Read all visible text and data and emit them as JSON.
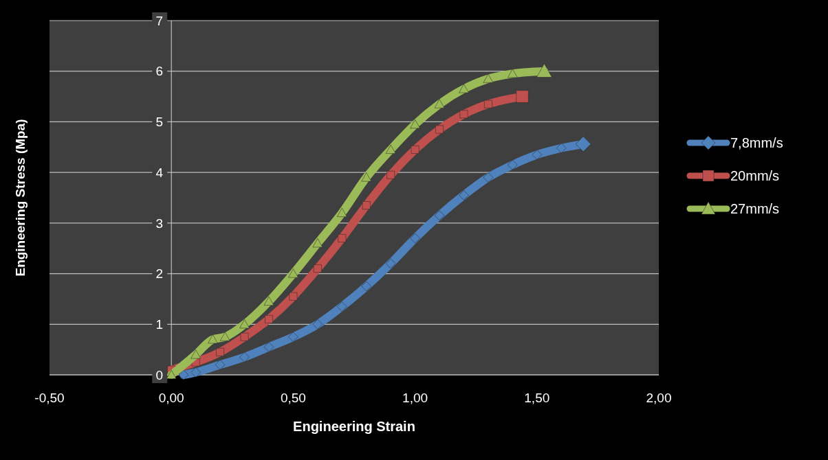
{
  "chart_data": {
    "type": "line",
    "xlabel": "Engineering Strain",
    "ylabel": "Engineering Stress (Mpa)",
    "xlim": [
      -0.5,
      2
    ],
    "xticks": [
      {
        "value": -0.5,
        "label": "-0,50"
      },
      {
        "value": 0,
        "label": "0,00"
      },
      {
        "value": 0.5,
        "label": "0,50"
      },
      {
        "value": 1,
        "label": "1,00"
      },
      {
        "value": 1.5,
        "label": "1,50"
      },
      {
        "value": 2,
        "label": "2,00"
      }
    ],
    "ylim": [
      0,
      7
    ],
    "yticks": [
      0,
      1,
      2,
      3,
      4,
      5,
      6,
      7
    ],
    "grid": "y",
    "legend": "right",
    "series": [
      {
        "name": "7,8mm/s",
        "color": "#4f81bd",
        "marker": "diamond",
        "x": [
          0.05,
          0.1,
          0.2,
          0.3,
          0.4,
          0.5,
          0.6,
          0.7,
          0.8,
          0.9,
          1.0,
          1.1,
          1.2,
          1.3,
          1.4,
          1.5,
          1.6,
          1.69
        ],
        "values": [
          0,
          0.05,
          0.2,
          0.35,
          0.55,
          0.75,
          1.0,
          1.35,
          1.75,
          2.2,
          2.7,
          3.15,
          3.55,
          3.9,
          4.15,
          4.35,
          4.48,
          4.56
        ]
      },
      {
        "name": "20mm/s",
        "color": "#c0504d",
        "marker": "square",
        "x": [
          0,
          0.1,
          0.2,
          0.3,
          0.4,
          0.5,
          0.6,
          0.7,
          0.8,
          0.9,
          1.0,
          1.1,
          1.2,
          1.3,
          1.44
        ],
        "values": [
          0.1,
          0.25,
          0.45,
          0.75,
          1.1,
          1.55,
          2.1,
          2.7,
          3.35,
          3.95,
          4.45,
          4.85,
          5.15,
          5.35,
          5.5
        ]
      },
      {
        "name": "27mm/s",
        "color": "#9bbb59",
        "marker": "triangle",
        "x": [
          0,
          0.1,
          0.17,
          0.22,
          0.3,
          0.4,
          0.5,
          0.6,
          0.7,
          0.8,
          0.9,
          1.0,
          1.1,
          1.2,
          1.3,
          1.4,
          1.53
        ],
        "values": [
          0,
          0.4,
          0.7,
          0.75,
          1.0,
          1.45,
          2.0,
          2.6,
          3.2,
          3.9,
          4.45,
          4.95,
          5.35,
          5.65,
          5.85,
          5.95,
          6.0
        ]
      }
    ]
  }
}
